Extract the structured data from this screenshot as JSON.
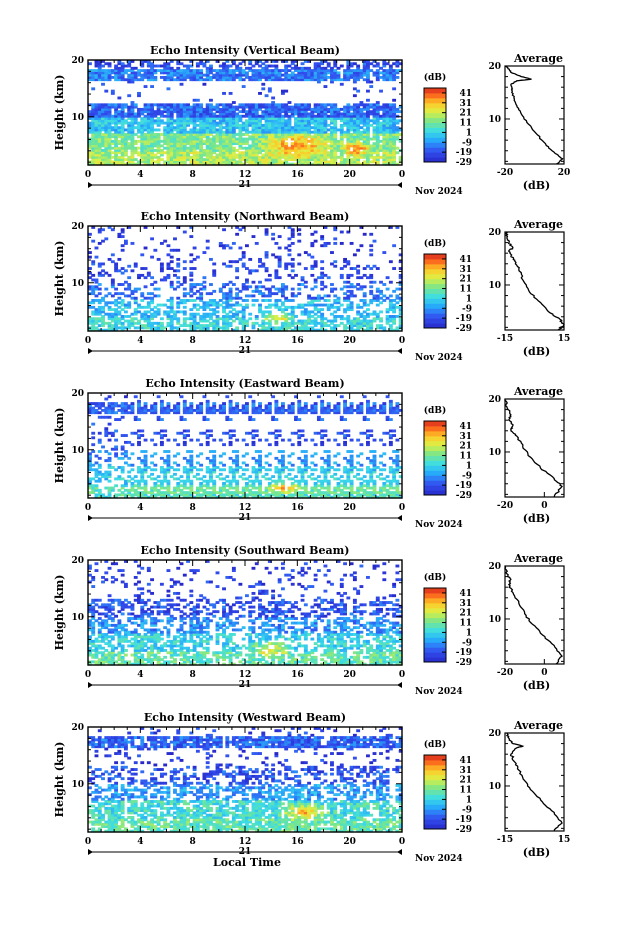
{
  "chart_data": [
    {
      "type": "heatmap",
      "title": "Echo Intensity (Vertical Beam)",
      "ylabel": "Height (km)",
      "xlabel": "",
      "x_ticks": [
        "0",
        "4",
        "8",
        "12",
        "16",
        "20",
        "0"
      ],
      "y_ticks": [
        "20",
        "10"
      ],
      "xlim": [
        0,
        24
      ],
      "ylim": [
        1.5,
        20
      ],
      "date_label": "21",
      "month_label": "Nov 2024",
      "colorbar": {
        "unit": "(dB)",
        "ticks": [
          "41",
          "31",
          "21",
          "11",
          "1",
          "-9",
          "-19",
          "-29"
        ],
        "range": [
          -29,
          46
        ]
      },
      "profile": {
        "title": "Average",
        "xlabel": "(dB)",
        "x_ticks": [
          "-20",
          "20"
        ],
        "xlim": [
          -20,
          20
        ],
        "y_ticks": [
          "20",
          "10"
        ]
      },
      "layers": [
        {
          "y0": 1.5,
          "y1": 4,
          "level": 0.62,
          "density": 0.97
        },
        {
          "y0": 4,
          "y1": 7,
          "level": 0.55,
          "density": 0.95
        },
        {
          "y0": 7,
          "y1": 10,
          "level": 0.36,
          "density": 0.93
        },
        {
          "y0": 10,
          "y1": 12.5,
          "level": 0.18,
          "density": 0.88
        },
        {
          "y0": 12.5,
          "y1": 16.5,
          "level": 0.1,
          "density": 0.05
        },
        {
          "y0": 16.5,
          "y1": 18.5,
          "level": 0.22,
          "density": 0.92
        },
        {
          "y0": 18.5,
          "y1": 20,
          "level": 0.13,
          "density": 0.45
        }
      ],
      "hot_spots": [
        {
          "x": 16,
          "y": 5,
          "r": 3
        },
        {
          "x": 20.5,
          "y": 4.5,
          "r": 1.5
        }
      ],
      "avg_profile": [
        [
          15,
          1.5
        ],
        [
          19,
          2.5
        ],
        [
          14,
          3.5
        ],
        [
          8,
          5
        ],
        [
          2,
          7
        ],
        [
          -4,
          9
        ],
        [
          -9,
          11
        ],
        [
          -12,
          12.5
        ],
        [
          -14,
          14
        ],
        [
          -15.5,
          15.5
        ],
        [
          -16,
          16.5
        ],
        [
          -12,
          17.2
        ],
        [
          -2,
          17.5
        ],
        [
          -9,
          18
        ],
        [
          -16,
          18.8
        ],
        [
          -18,
          19.5
        ],
        [
          -19,
          20
        ]
      ]
    },
    {
      "type": "heatmap",
      "title": "Echo Intensity (Northward Beam)",
      "ylabel": "Height (km)",
      "xlabel": "",
      "x_ticks": [
        "0",
        "4",
        "8",
        "12",
        "16",
        "20",
        "0"
      ],
      "y_ticks": [
        "20",
        "10"
      ],
      "xlim": [
        0,
        24
      ],
      "ylim": [
        1.5,
        20
      ],
      "date_label": "21",
      "month_label": "Nov 2024",
      "colorbar": {
        "unit": "(dB)",
        "ticks": [
          "41",
          "31",
          "21",
          "11",
          "1",
          "-9",
          "-19",
          "-29"
        ],
        "range": [
          -29,
          46
        ]
      },
      "profile": {
        "title": "Average",
        "xlabel": "(dB)",
        "x_ticks": [
          "-15",
          "15"
        ],
        "xlim": [
          -15,
          15
        ],
        "y_ticks": [
          "20",
          "10"
        ]
      },
      "layers": [
        {
          "y0": 1.5,
          "y1": 4,
          "level": 0.42,
          "density": 0.7
        },
        {
          "y0": 4,
          "y1": 7,
          "level": 0.35,
          "density": 0.55
        },
        {
          "y0": 7,
          "y1": 10,
          "level": 0.2,
          "density": 0.35
        },
        {
          "y0": 10,
          "y1": 14,
          "level": 0.12,
          "density": 0.22
        },
        {
          "y0": 14,
          "y1": 20,
          "level": 0.08,
          "density": 0.1
        }
      ],
      "hot_spots": [
        {
          "x": 14.5,
          "y": 4,
          "r": 1.5
        }
      ],
      "avg_profile": [
        [
          12,
          1.5
        ],
        [
          15,
          2.5
        ],
        [
          13,
          3.5
        ],
        [
          7,
          5
        ],
        [
          2,
          7
        ],
        [
          -3,
          9
        ],
        [
          -6,
          11
        ],
        [
          -8,
          13
        ],
        [
          -10,
          14.5
        ],
        [
          -12,
          15.5
        ],
        [
          -13,
          16.5
        ],
        [
          -11,
          17
        ],
        [
          -13,
          18
        ],
        [
          -14,
          19
        ],
        [
          -14.5,
          20
        ]
      ]
    },
    {
      "type": "heatmap",
      "title": "Echo Intensity (Eastward Beam)",
      "ylabel": "Height (km)",
      "xlabel": "",
      "x_ticks": [
        "0",
        "4",
        "8",
        "12",
        "16",
        "20",
        "0"
      ],
      "y_ticks": [
        "20",
        "10"
      ],
      "xlim": [
        0,
        24
      ],
      "ylim": [
        1.5,
        20
      ],
      "date_label": "21",
      "month_label": "Nov 2024",
      "colorbar": {
        "unit": "(dB)",
        "ticks": [
          "41",
          "31",
          "21",
          "11",
          "1",
          "-9",
          "-19",
          "-29"
        ],
        "range": [
          -29,
          46
        ]
      },
      "profile": {
        "title": "Average",
        "xlabel": "(dB)",
        "x_ticks": [
          "-20",
          "0"
        ],
        "xlim": [
          -20,
          10
        ],
        "y_ticks": [
          "20",
          "10"
        ]
      },
      "layers": [
        {
          "y0": 1.5,
          "y1": 4,
          "level": 0.48,
          "density": 0.75
        },
        {
          "y0": 4,
          "y1": 7,
          "level": 0.38,
          "density": 0.55
        },
        {
          "y0": 7,
          "y1": 10,
          "level": 0.24,
          "density": 0.4
        },
        {
          "y0": 10,
          "y1": 16.5,
          "level": 0.14,
          "density": 0.22
        },
        {
          "y0": 16.5,
          "y1": 18.5,
          "level": 0.16,
          "density": 0.85
        },
        {
          "y0": 18.5,
          "y1": 20,
          "level": 0.1,
          "density": 0.12
        }
      ],
      "hot_spots": [
        {
          "x": 15,
          "y": 3.5,
          "r": 1.5
        }
      ],
      "avg_profile": [
        [
          5,
          1.5
        ],
        [
          9,
          3.5
        ],
        [
          5,
          5
        ],
        [
          -2,
          7
        ],
        [
          -7,
          9
        ],
        [
          -11,
          11
        ],
        [
          -14,
          13
        ],
        [
          -17,
          14
        ],
        [
          -16,
          15
        ],
        [
          -18,
          16
        ],
        [
          -17,
          17
        ],
        [
          -19,
          18.5
        ],
        [
          -20,
          20
        ]
      ]
    },
    {
      "type": "heatmap",
      "title": "Echo Intensity (Southward Beam)",
      "ylabel": "Height (km)",
      "xlabel": "",
      "x_ticks": [
        "0",
        "4",
        "8",
        "12",
        "16",
        "20",
        "0"
      ],
      "y_ticks": [
        "20",
        "10"
      ],
      "xlim": [
        0,
        24
      ],
      "ylim": [
        1.5,
        20
      ],
      "date_label": "21",
      "month_label": "Nov 2024",
      "colorbar": {
        "unit": "(dB)",
        "ticks": [
          "41",
          "31",
          "21",
          "11",
          "1",
          "-9",
          "-19",
          "-29"
        ],
        "range": [
          -29,
          46
        ]
      },
      "profile": {
        "title": "Average",
        "xlabel": "(dB)",
        "x_ticks": [
          "-20",
          "0"
        ],
        "xlim": [
          -20,
          10
        ],
        "y_ticks": [
          "20",
          "10"
        ]
      },
      "layers": [
        {
          "y0": 1.5,
          "y1": 4,
          "level": 0.5,
          "density": 0.72
        },
        {
          "y0": 4,
          "y1": 7,
          "level": 0.4,
          "density": 0.65
        },
        {
          "y0": 7,
          "y1": 10,
          "level": 0.26,
          "density": 0.55
        },
        {
          "y0": 10,
          "y1": 13,
          "level": 0.14,
          "density": 0.45
        },
        {
          "y0": 13,
          "y1": 20,
          "level": 0.09,
          "density": 0.12
        }
      ],
      "hot_spots": [
        {
          "x": 14,
          "y": 4.5,
          "r": 1.8
        }
      ],
      "avg_profile": [
        [
          6,
          1.5
        ],
        [
          9,
          3
        ],
        [
          5,
          5
        ],
        [
          -1,
          7
        ],
        [
          -6,
          9
        ],
        [
          -10,
          11
        ],
        [
          -13,
          13
        ],
        [
          -16,
          15
        ],
        [
          -18,
          16.5
        ],
        [
          -17,
          17.5
        ],
        [
          -19,
          18.5
        ],
        [
          -20,
          20
        ]
      ]
    },
    {
      "type": "heatmap",
      "title": "Echo Intensity (Westward Beam)",
      "ylabel": "Height (km)",
      "xlabel": "Local Time",
      "x_ticks": [
        "0",
        "4",
        "8",
        "12",
        "16",
        "20",
        "0"
      ],
      "y_ticks": [
        "20",
        "10"
      ],
      "xlim": [
        0,
        24
      ],
      "ylim": [
        1.5,
        20
      ],
      "date_label": "21",
      "month_label": "Nov 2024",
      "colorbar": {
        "unit": "(dB)",
        "ticks": [
          "41",
          "31",
          "21",
          "11",
          "1",
          "-9",
          "-19",
          "-29"
        ],
        "range": [
          -29,
          46
        ]
      },
      "profile": {
        "title": "Average",
        "xlabel": "(dB)",
        "x_ticks": [
          "-15",
          "15"
        ],
        "xlim": [
          -15,
          15
        ],
        "y_ticks": [
          "20",
          "10"
        ]
      },
      "layers": [
        {
          "y0": 1.5,
          "y1": 4,
          "level": 0.5,
          "density": 0.8
        },
        {
          "y0": 4,
          "y1": 7,
          "level": 0.44,
          "density": 0.72
        },
        {
          "y0": 7,
          "y1": 10,
          "level": 0.28,
          "density": 0.5
        },
        {
          "y0": 10,
          "y1": 13,
          "level": 0.14,
          "density": 0.35
        },
        {
          "y0": 13,
          "y1": 16.5,
          "level": 0.08,
          "density": 0.1
        },
        {
          "y0": 16.5,
          "y1": 18.5,
          "level": 0.18,
          "density": 0.85
        },
        {
          "y0": 18.5,
          "y1": 20,
          "level": 0.1,
          "density": 0.08
        }
      ],
      "hot_spots": [
        {
          "x": 16.5,
          "y": 5,
          "r": 2.2
        }
      ],
      "avg_profile": [
        [
          10,
          1.5
        ],
        [
          14,
          3
        ],
        [
          10,
          5
        ],
        [
          4,
          7
        ],
        [
          -1,
          9
        ],
        [
          -5,
          11
        ],
        [
          -8,
          13
        ],
        [
          -10,
          14.5
        ],
        [
          -12,
          16
        ],
        [
          -9,
          17.2
        ],
        [
          -6,
          17.5
        ],
        [
          -11,
          18
        ],
        [
          -13,
          19
        ],
        [
          -14,
          20
        ]
      ]
    }
  ]
}
